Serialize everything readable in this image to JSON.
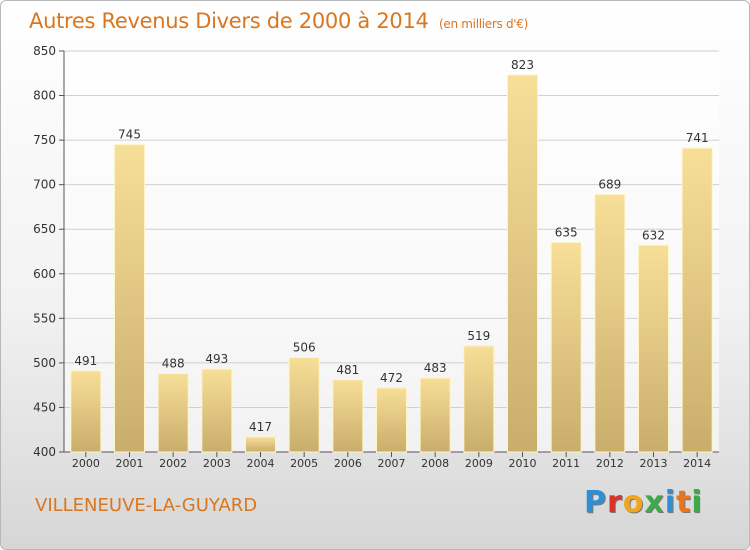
{
  "header": {
    "title": "Autres Revenus Divers de 2000 à 2014",
    "subtitle": "(en milliers d'€)"
  },
  "footer": {
    "location": "VILLENEUVE-LA-GUYARD",
    "brand": "Proxiti",
    "brand_colors": [
      "#2f8fd6",
      "#d9342b",
      "#f0a51f",
      "#3fa84a",
      "#2f8fd6",
      "#e8761e",
      "#3fa84a"
    ]
  },
  "colors": {
    "title": "#d9761e",
    "bar_light": "#f7df98",
    "bar_dark": "#c9ad6c",
    "axis": "#555555",
    "grid": "#d0d0d0",
    "label": "#333333"
  },
  "chart_data": {
    "type": "bar",
    "title": "Autres Revenus Divers de 2000 à 2014",
    "subtitle": "(en milliers d'€)",
    "categories": [
      "2000",
      "2001",
      "2002",
      "2003",
      "2004",
      "2005",
      "2006",
      "2007",
      "2008",
      "2009",
      "2010",
      "2011",
      "2012",
      "2013",
      "2014"
    ],
    "values": [
      491,
      745,
      488,
      493,
      417,
      506,
      481,
      472,
      483,
      519,
      823,
      635,
      689,
      632,
      741
    ],
    "ylim": [
      400,
      850
    ],
    "yticks": [
      400,
      450,
      500,
      550,
      600,
      650,
      700,
      750,
      800,
      850
    ],
    "grid": true,
    "data_labels": true
  }
}
